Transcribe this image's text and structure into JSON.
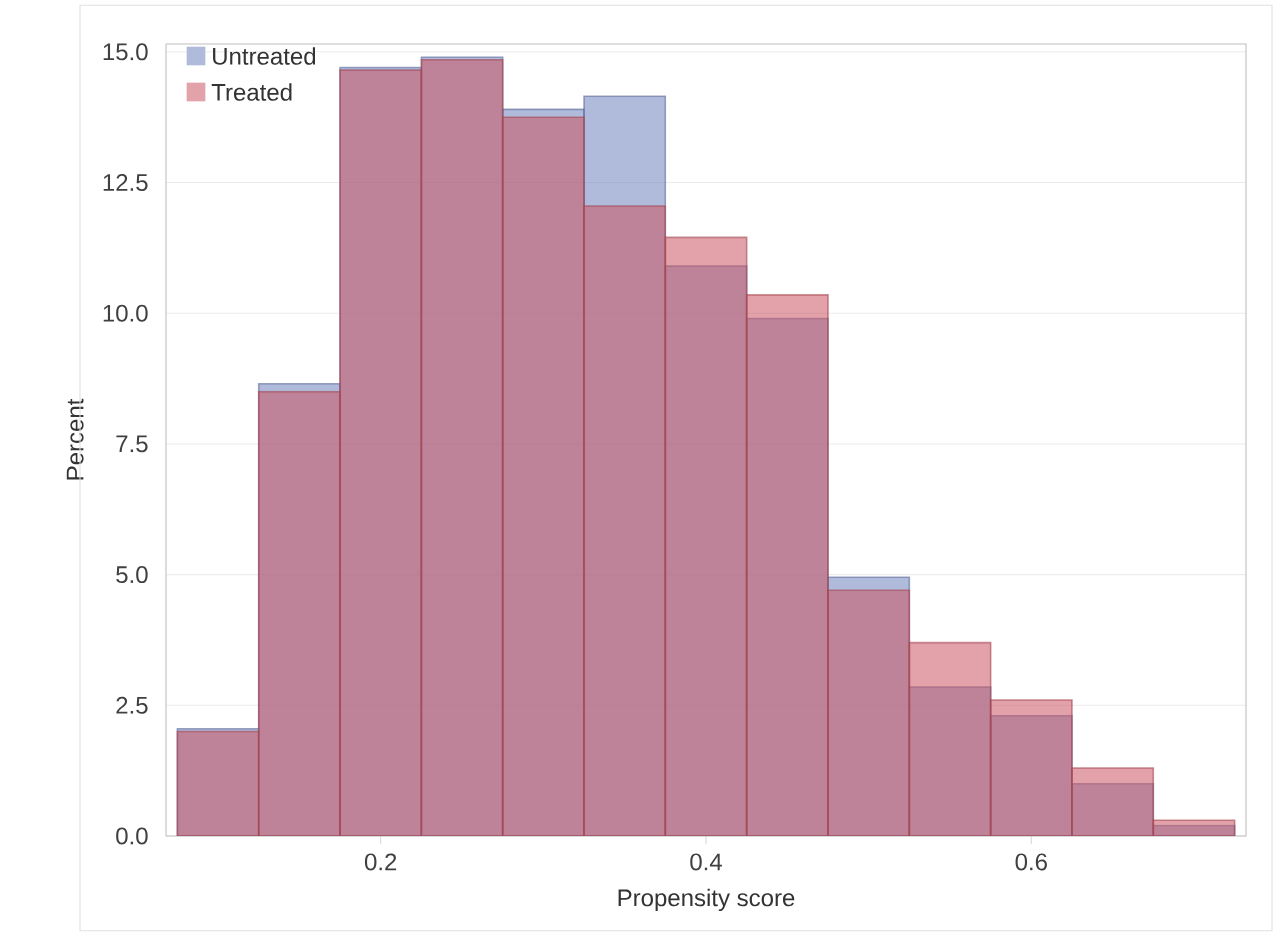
{
  "chart_data": {
    "type": "histogram",
    "xlabel": "Propensity score",
    "ylabel": "Percent",
    "bins": [
      0.075,
      0.125,
      0.175,
      0.225,
      0.275,
      0.325,
      0.375,
      0.425,
      0.475,
      0.525,
      0.575,
      0.625,
      0.675,
      0.725
    ],
    "series": [
      {
        "name": "Untreated",
        "color": "#7083c0",
        "values": [
          2.05,
          8.65,
          14.7,
          14.9,
          13.9,
          14.15,
          10.9,
          9.9,
          4.95,
          2.85,
          2.3,
          1.0,
          0.2
        ]
      },
      {
        "name": "Treated",
        "color": "#cc5562",
        "values": [
          2.0,
          8.5,
          14.65,
          14.85,
          13.75,
          12.05,
          11.45,
          10.35,
          4.7,
          3.7,
          2.6,
          1.3,
          0.3
        ]
      }
    ],
    "xlim": [
      0.068,
      0.732
    ],
    "ylim": [
      0,
      15.15
    ],
    "xticks": [
      0.2,
      0.4,
      0.6
    ],
    "yticks": [
      {
        "value": 0,
        "label": "0.0"
      },
      {
        "value": 2.5,
        "label": "2.5"
      },
      {
        "value": 5,
        "label": "5.0"
      },
      {
        "value": 7.5,
        "label": "7.5"
      },
      {
        "value": 10,
        "label": "10.0"
      },
      {
        "value": 12.5,
        "label": "12.5"
      },
      {
        "value": 15,
        "label": "15.0"
      }
    ],
    "grid": "y",
    "legend": "top left"
  }
}
